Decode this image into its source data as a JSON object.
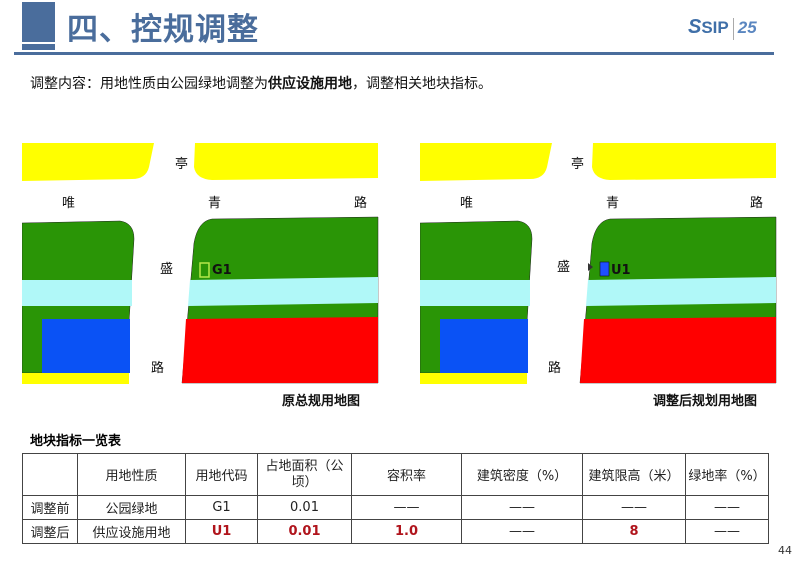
{
  "header": {
    "title": "四、控规调整",
    "logo_text": "SIP",
    "logo_mark": "25"
  },
  "description": {
    "prefix": "调整内容：用地性质由公园绿地调整为",
    "bold": "供应设施用地",
    "suffix": "，调整相关地块指标。"
  },
  "map_labels": {
    "ting": "亭",
    "wei": "唯",
    "qing": "青",
    "lu_top": "路",
    "sheng": "盛",
    "lu_bottom": "路"
  },
  "maps": [
    {
      "caption": "原总规用地图",
      "parcel_code": "G1",
      "parcel_color": "#b6e84a"
    },
    {
      "caption": "调整后规划用地图",
      "parcel_code": "U1",
      "parcel_color": "#1f4fff"
    }
  ],
  "colors": {
    "yellow": "#ffff00",
    "green": "#2a9506",
    "cyan": "#b0f8f8",
    "blue": "#0a52f5",
    "red": "#ff0000",
    "accent": "#4a6d9c"
  },
  "table": {
    "title": "地块指标一览表",
    "headers": [
      "",
      "用地性质",
      "用地代码",
      "占地面积（公顷）",
      "容积率",
      "建筑密度（%）",
      "建筑限高（米）",
      "绿地率（%）"
    ],
    "rows": [
      {
        "label": "调整前",
        "cells": [
          "公园绿地",
          "G1",
          "0.01",
          "——",
          "——",
          "——",
          "——"
        ]
      },
      {
        "label": "调整后",
        "cells": [
          "供应设施用地",
          "U1",
          "0.01",
          "1.0",
          "——",
          "8",
          "——"
        ]
      }
    ]
  },
  "page_number": "44"
}
